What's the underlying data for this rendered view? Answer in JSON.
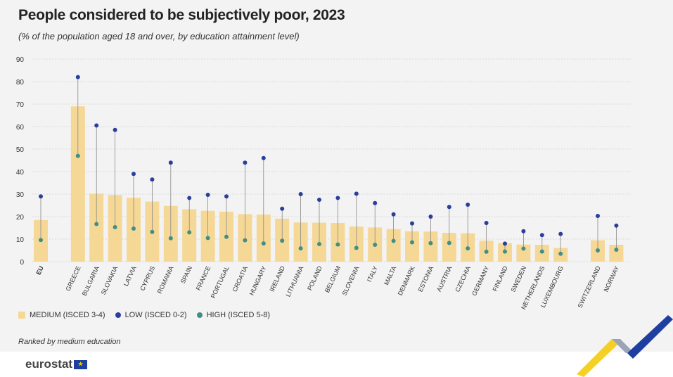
{
  "title": "People considered to be subjectively poor, 2023",
  "subtitle": "(% of the population aged 18 and over, by education attainment level)",
  "note": "Ranked by medium education",
  "logo_text": "eurostat",
  "legend": {
    "medium": "MEDIUM (ISCED 3-4)",
    "low": "LOW (ISCED 0-2)",
    "high": "HIGH (ISCED 5-8)"
  },
  "colors": {
    "medium": "#f6d896",
    "low": "#2a3f9d",
    "high": "#3f8f87",
    "stem": "#888888",
    "grid": "#cfcfcf"
  },
  "chart_data": {
    "type": "bar",
    "ylim": [
      0,
      90
    ],
    "yticks": [
      0,
      10,
      20,
      30,
      40,
      50,
      60,
      70,
      80,
      90
    ],
    "grid": true,
    "categories": [
      "EU",
      "GREECE",
      "BULGARIA",
      "SLOVAKIA",
      "LATVIA",
      "CYPRUS",
      "ROMANIA",
      "SPAIN",
      "FRANCE",
      "PORTUGAL",
      "CROATIA",
      "HUNGARY",
      "IRELAND",
      "LITHUANIA",
      "POLAND",
      "BELGIUM",
      "SLOVENIA",
      "ITALY",
      "MALTA",
      "DENMARK",
      "ESTONIA",
      "AUSTRIA",
      "CZECHIA",
      "GERMANY",
      "FINLAND",
      "SWEDEN",
      "NETHERLANDS",
      "LUXEMBOURG",
      "SWITZERLAND",
      "NORWAY"
    ],
    "series": [
      {
        "name": "MEDIUM (ISCED 3-4)",
        "values": [
          18.5,
          69,
          30.2,
          29.6,
          28.4,
          26.7,
          24.8,
          23.3,
          22.6,
          22.2,
          21.1,
          20.9,
          19.1,
          17.4,
          17.3,
          17.2,
          15.6,
          15.2,
          14.5,
          13.5,
          13.4,
          12.8,
          12.6,
          9.3,
          8.2,
          7.6,
          7.5,
          6.1,
          9.5,
          7.5
        ]
      },
      {
        "name": "LOW (ISCED 0-2)",
        "values": [
          29,
          82,
          60.5,
          58.5,
          39,
          36.5,
          44,
          28.3,
          29.7,
          29,
          44,
          46,
          23.5,
          30,
          27.5,
          28.3,
          30.2,
          26,
          21,
          17,
          20,
          24.3,
          25.3,
          17.2,
          8,
          13.5,
          11.8,
          12.3,
          20.3,
          16
        ]
      },
      {
        "name": "HIGH (ISCED 5-8)",
        "values": [
          9.6,
          47,
          16.7,
          15.3,
          14.7,
          13.2,
          10.4,
          13,
          10.5,
          11,
          9.5,
          8.1,
          9.3,
          5.9,
          7.8,
          7.6,
          6.1,
          7.5,
          9.2,
          8.6,
          8.2,
          8.3,
          5.9,
          4.4,
          4.5,
          5.8,
          4.5,
          3.5,
          5,
          5.3
        ]
      }
    ]
  }
}
